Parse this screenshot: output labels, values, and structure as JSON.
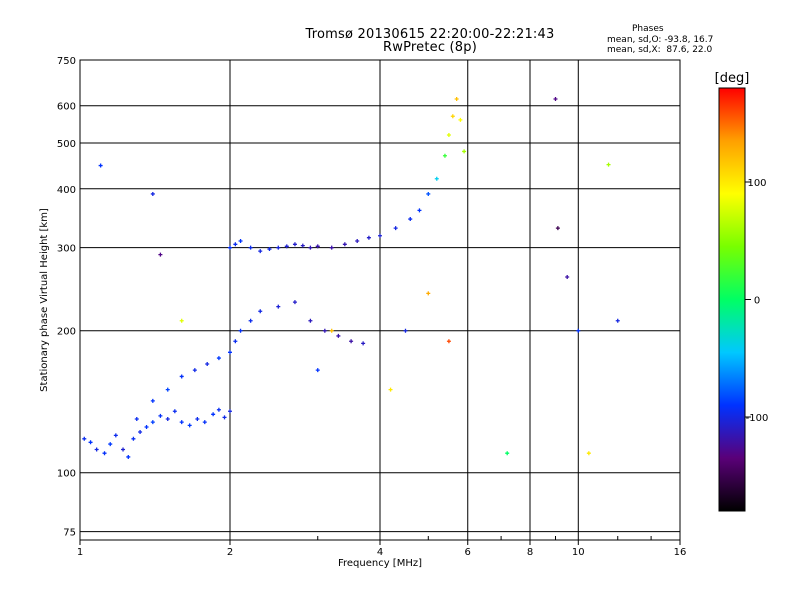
{
  "chart_data": {
    "type": "scatter",
    "title": "Tromsø 20130615 22:20:00-22:21:43",
    "subtitle": "RwPretec (8p)",
    "stats": {
      "heading": "Phases",
      "line1": "mean, sd,O: -93.8, 16.7",
      "line2": "mean, sd,X:  87.6, 22.0"
    },
    "xlabel": "Frequency [MHz]",
    "ylabel": "Stationary phase Virtual Height [km]",
    "xscale": "log",
    "yscale": "log",
    "xlim": [
      1,
      16
    ],
    "ylim": [
      72,
      750
    ],
    "xticks": [
      1,
      2,
      4,
      6,
      8,
      10,
      16
    ],
    "xtick_labels": [
      "1",
      "2",
      "4",
      "6",
      "8",
      "10",
      "16"
    ],
    "yticks": [
      75,
      100,
      200,
      300,
      400,
      500,
      600,
      750
    ],
    "ytick_labels": [
      "75",
      "100",
      "200",
      "300",
      "400",
      "500",
      "600",
      "750"
    ],
    "grid": true,
    "colorbar": {
      "label": "[deg]",
      "range": [
        -180,
        180
      ],
      "ticks": [
        -100,
        0,
        100
      ],
      "tick_labels": [
        "-100",
        "0",
        "100"
      ],
      "colors": [
        "#000000",
        "#5a0078",
        "#0032ff",
        "#00c8ff",
        "#00ff64",
        "#78ff00",
        "#ffff00",
        "#ffa000",
        "#ff0000"
      ]
    },
    "series": [
      {
        "x": [
          1.02,
          1.05,
          1.08,
          1.12,
          1.15,
          1.18,
          1.22,
          1.25,
          1.28,
          1.32,
          1.36,
          1.4,
          1.45,
          1.5,
          1.55,
          1.6,
          1.66,
          1.72,
          1.78,
          1.85,
          1.9,
          1.95,
          2.0
        ],
        "y": [
          118,
          116,
          112,
          110,
          115,
          120,
          112,
          108,
          118,
          122,
          125,
          128,
          132,
          130,
          135,
          128,
          126,
          130,
          128,
          133,
          136,
          131,
          135
        ],
        "phase": [
          -95,
          -90,
          -100,
          -92,
          -88,
          -96,
          -105,
          -90,
          -94,
          -98,
          -90,
          -86,
          -92,
          -100,
          -95,
          -90,
          -88,
          -96,
          -92,
          -90,
          -94,
          -98,
          -100
        ]
      },
      {
        "x": [
          1.3,
          1.4,
          1.5,
          1.6,
          1.7,
          1.8,
          1.9,
          2.0,
          2.05,
          2.1,
          2.2,
          2.3,
          2.5,
          2.7,
          2.9,
          3.1,
          3.3,
          3.5,
          3.7
        ],
        "y": [
          130,
          142,
          150,
          160,
          165,
          170,
          175,
          180,
          190,
          200,
          210,
          220,
          225,
          230,
          210,
          200,
          195,
          190,
          188
        ],
        "phase": [
          -95,
          -90,
          -85,
          -92,
          -98,
          -100,
          -88,
          -90,
          -95,
          -92,
          -96,
          -99,
          -104,
          -108,
          -112,
          -115,
          -118,
          -120,
          -110
        ]
      },
      {
        "x": [
          2.0,
          2.05,
          2.1,
          2.2,
          2.3,
          2.4,
          2.5,
          2.6,
          2.7,
          2.8,
          2.9,
          3.0,
          3.2,
          3.4,
          3.6,
          3.8,
          4.0,
          4.3,
          4.6,
          4.8,
          5.0,
          5.2,
          5.4,
          5.5,
          5.6,
          5.7,
          5.8,
          5.9
        ],
        "y": [
          300,
          305,
          310,
          300,
          295,
          298,
          300,
          302,
          305,
          303,
          300,
          302,
          300,
          305,
          310,
          315,
          318,
          330,
          345,
          360,
          390,
          420,
          470,
          520,
          570,
          620,
          560,
          480
        ],
        "phase": [
          -92,
          -95,
          -90,
          -96,
          -100,
          -98,
          -102,
          -105,
          -108,
          -110,
          -115,
          -118,
          -120,
          -116,
          -112,
          -108,
          -104,
          -100,
          -95,
          -90,
          -80,
          -40,
          20,
          80,
          110,
          120,
          90,
          60
        ]
      },
      {
        "x": [
          1.1,
          1.4,
          1.45,
          1.6,
          3.0,
          3.2,
          4.2,
          4.5,
          5.0,
          5.5,
          7.2,
          9.0,
          9.1,
          9.5,
          10.0,
          10.5,
          11.5,
          12.0
        ],
        "y": [
          448,
          390,
          290,
          210,
          165,
          200,
          150,
          200,
          240,
          190,
          110,
          620,
          330,
          260,
          200,
          110,
          450,
          210
        ],
        "phase": [
          -90,
          -100,
          -130,
          80,
          -90,
          120,
          100,
          -100,
          130,
          160,
          0,
          -130,
          -150,
          -120,
          -90,
          100,
          60,
          -100
        ]
      }
    ]
  }
}
